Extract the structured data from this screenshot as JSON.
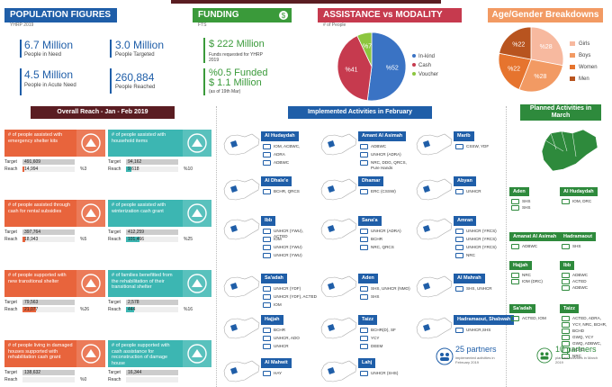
{
  "population": {
    "title": "POPULATION FIGURES",
    "sub": "YHRP 2019",
    "in_need": {
      "value": "6.7 Million",
      "label": "People in Need"
    },
    "acute": {
      "value": "4.5 Million",
      "label": "People in Acute Need"
    },
    "targeted": {
      "value": "3.0 Million",
      "label": "People Targeted"
    },
    "reached": {
      "value": "260,884",
      "label": "People Reached"
    }
  },
  "funding": {
    "title": "FUNDING",
    "sub": "FTS",
    "requested_value": "$ 222 Million",
    "requested_label": "Funds requested for YHRP 2019",
    "funded_pct": "%0.5  Funded",
    "funded_value": "$ 1.1  Million",
    "funded_note": "(as of 19th Mar)"
  },
  "assistance": {
    "title": "ASSISTANCE vs MODALITY",
    "sub": "# of People",
    "slices": [
      {
        "label": "In-kind",
        "value": 52,
        "text": "%52",
        "color": "#3a73c4"
      },
      {
        "label": "Cash",
        "value": 41,
        "text": "%41",
        "color": "#c63a4e"
      },
      {
        "label": "Voucher",
        "value": 7,
        "text": "%7",
        "color": "#8cc63f"
      }
    ]
  },
  "agegender": {
    "title": "Age/Gender Breakdowns",
    "slices": [
      {
        "label": "Girls",
        "value": 28,
        "text": "%28",
        "color": "#f7b99f"
      },
      {
        "label": "Boys",
        "value": 28,
        "text": "%28",
        "color": "#f29a63"
      },
      {
        "label": "Women",
        "value": 22,
        "text": "%22",
        "color": "#e6742e"
      },
      {
        "label": "Men",
        "value": 22,
        "text": "%22",
        "color": "#b8541f"
      }
    ]
  },
  "reach": {
    "title": "Overall Reach  -  Jan - Feb 2019",
    "target_label": "Target",
    "reach_label": "Reach",
    "cards": [
      {
        "text": "# of people assisted with emergency shelter kits",
        "target": "491,609",
        "reach": "14,994",
        "pct": "%3",
        "ratio": 0.03,
        "color": "#e8643c"
      },
      {
        "text": "# of people assisted with household items",
        "target": "94,162",
        "reach": "9,618",
        "pct": "%10",
        "ratio": 0.1,
        "color": "#3cb6b2"
      },
      {
        "text": "# of people assisted through cash for rental subsidies",
        "target": "397,764",
        "reach": "18,943",
        "pct": "%5",
        "ratio": 0.05,
        "color": "#e8643c"
      },
      {
        "text": "# of people assisted with winterization cash grant",
        "target": "412,259",
        "reach": "101,466",
        "pct": "%25",
        "ratio": 0.25,
        "color": "#3cb6b2"
      },
      {
        "text": "# of people supported with new transitional shelter",
        "target": "79,563",
        "reach": "21,077",
        "pct": "%26",
        "ratio": 0.26,
        "color": "#e8643c"
      },
      {
        "text": "# of families benefitted from the rehabilitation of their transitional shelter",
        "target": "2,578",
        "reach": "444",
        "pct": "%16",
        "ratio": 0.16,
        "color": "#3cb6b2"
      },
      {
        "text": "# of people living in damaged houses supported with rehabilitation cash grant",
        "target": "138,632",
        "reach": "",
        "pct": "%0",
        "ratio": 0.0,
        "color": "#e8643c"
      },
      {
        "text": "# of people supported with cash assistance for reconstruction of damage house",
        "target": "16,344",
        "reach": "",
        "pct": "",
        "ratio": 0.0,
        "color": "#3cb6b2"
      }
    ]
  },
  "implemented": {
    "title": "Implemented Activities in February",
    "govs": [
      {
        "name": "Al Hudaydah",
        "lines": [
          "IOM, ACBWC,",
          "ADRA",
          "ADBWC"
        ]
      },
      {
        "name": "Amant Al Asimah",
        "lines": [
          "ADBWC",
          "UNHCR (ADRA)",
          "NRC, DDG, QRCS, Pure Hands"
        ]
      },
      {
        "name": "Marib",
        "lines": [
          "CSSW, YDF"
        ]
      },
      {
        "name": "Al Dhale'e",
        "lines": [
          "BCHR, QRCS"
        ]
      },
      {
        "name": "Dhamar",
        "lines": [
          "ERC (CSSW)"
        ]
      },
      {
        "name": "Abyan",
        "lines": [
          "UNHCR"
        ]
      },
      {
        "name": "Ibb",
        "lines": [
          "UNHCR (YWU), ACTED",
          "IOM",
          "UNHCR (YWU)",
          "UNHCR (YWU)"
        ]
      },
      {
        "name": "Sana'a",
        "lines": [
          "UNHCR (ADRA)",
          "BCHR",
          "NRC, QRCS"
        ]
      },
      {
        "name": "Amran",
        "lines": [
          "UNHCR (YRCS)",
          "UNHCR (YRCS)",
          "UNHCR (YRCS)",
          "NRC"
        ]
      },
      {
        "name": "Sa'adah",
        "lines": [
          "UNHCR (YDF)",
          "UNHCR (YDF), ACTED",
          "IOM"
        ]
      },
      {
        "name": "Aden",
        "lines": [
          "SHS, UNHCR (NMO)",
          "SHS"
        ]
      },
      {
        "name": "Al Mahrah",
        "lines": [
          "SHS, UNHCR"
        ]
      },
      {
        "name": "Hajjah",
        "lines": [
          "BCHR",
          "UNHCR, ADO",
          "UNHCR"
        ]
      },
      {
        "name": "Taizz",
        "lines": [
          "BCHR(D), SF",
          "YCY",
          "DEEM"
        ]
      },
      {
        "name": "Hadramaout, Shabwah",
        "lines": [
          "UNHCR,SHS"
        ]
      },
      {
        "name": "Al Mahwit",
        "lines": [
          "HAY"
        ]
      },
      {
        "name": "Lahj",
        "lines": [
          "UNHCR (SHS)"
        ]
      }
    ],
    "partners_count": "25 partners",
    "partners_sub": "implemented activities in February 2019"
  },
  "planned": {
    "title": "Planned Activities in March",
    "govs": [
      {
        "name": "Aden",
        "lines": [
          "SHS",
          "SHS"
        ]
      },
      {
        "name": "Al Hudaydah",
        "lines": [
          "IOM, DRC"
        ]
      },
      {
        "name": "Amanat Al Asimah",
        "lines": [
          "ADBWC"
        ]
      },
      {
        "name": "Hadramaout",
        "lines": [
          "SHS"
        ]
      },
      {
        "name": "Hajjah",
        "lines": [
          "NRC",
          "IOM (DRC)"
        ]
      },
      {
        "name": "Ibb",
        "lines": [
          "ADBWC",
          "ACTED",
          "ADBWC"
        ]
      },
      {
        "name": "Sa'adah",
        "lines": [
          "ACTED, IOM"
        ]
      },
      {
        "name": "Taizz",
        "lines": [
          "ACTED, ADRA,",
          "YCY, NRC, BCHR,",
          "BCHD",
          "GWQ, YCY",
          "GWQ, ADBWC,",
          "BCHD",
          "NRC"
        ]
      }
    ],
    "partners_count": "10 partners",
    "partners_sub": "planned activities in March 2019"
  }
}
